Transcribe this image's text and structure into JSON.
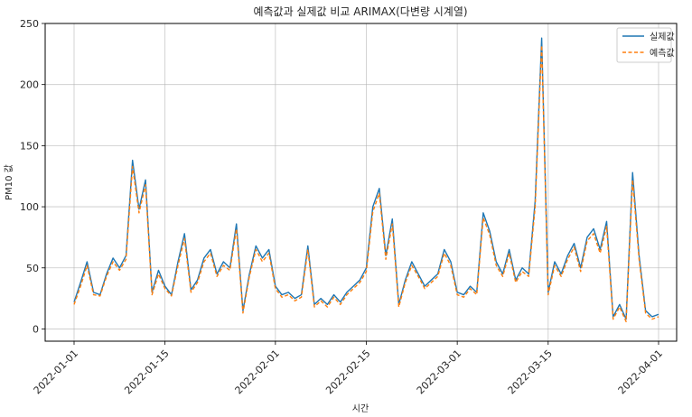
{
  "chart_data": {
    "type": "line",
    "title": "예측값과 실제값 비교 ARIMAX(다변량 시계열)",
    "xlabel": "시간",
    "ylabel": "PM10 값",
    "x_start": "2022-01-01",
    "x_end": "2022-04-01",
    "xlim": [
      "2022-01-01",
      "2022-04-01"
    ],
    "ylim": [
      -10,
      250
    ],
    "grid": true,
    "legend_position": "top-right",
    "x_ticks": [
      "2022-01-01",
      "2022-01-15",
      "2022-02-01",
      "2022-02-15",
      "2022-03-01",
      "2022-03-15",
      "2022-04-01"
    ],
    "y_ticks": [
      0,
      50,
      100,
      150,
      200,
      250
    ],
    "series": [
      {
        "name": "실제값",
        "color": "#1f77b4",
        "style": "solid",
        "values": [
          [
            "2022-01-01",
            22
          ],
          [
            "2022-01-02",
            38
          ],
          [
            "2022-01-03",
            55
          ],
          [
            "2022-01-04",
            30
          ],
          [
            "2022-01-05",
            28
          ],
          [
            "2022-01-06",
            45
          ],
          [
            "2022-01-07",
            58
          ],
          [
            "2022-01-08",
            50
          ],
          [
            "2022-01-09",
            60
          ],
          [
            "2022-01-10",
            138
          ],
          [
            "2022-01-11",
            98
          ],
          [
            "2022-01-12",
            122
          ],
          [
            "2022-01-13",
            30
          ],
          [
            "2022-01-14",
            48
          ],
          [
            "2022-01-15",
            35
          ],
          [
            "2022-01-16",
            28
          ],
          [
            "2022-01-17",
            55
          ],
          [
            "2022-01-18",
            78
          ],
          [
            "2022-01-19",
            32
          ],
          [
            "2022-01-20",
            40
          ],
          [
            "2022-01-21",
            58
          ],
          [
            "2022-01-22",
            65
          ],
          [
            "2022-01-23",
            45
          ],
          [
            "2022-01-24",
            55
          ],
          [
            "2022-01-25",
            50
          ],
          [
            "2022-01-26",
            86
          ],
          [
            "2022-01-27",
            15
          ],
          [
            "2022-01-28",
            45
          ],
          [
            "2022-01-29",
            68
          ],
          [
            "2022-01-30",
            58
          ],
          [
            "2022-01-31",
            65
          ],
          [
            "2022-02-01",
            35
          ],
          [
            "2022-02-02",
            28
          ],
          [
            "2022-02-03",
            30
          ],
          [
            "2022-02-04",
            25
          ],
          [
            "2022-02-05",
            28
          ],
          [
            "2022-02-06",
            68
          ],
          [
            "2022-02-07",
            20
          ],
          [
            "2022-02-08",
            25
          ],
          [
            "2022-02-09",
            20
          ],
          [
            "2022-02-10",
            28
          ],
          [
            "2022-02-11",
            22
          ],
          [
            "2022-02-12",
            30
          ],
          [
            "2022-02-13",
            35
          ],
          [
            "2022-02-14",
            40
          ],
          [
            "2022-02-15",
            50
          ],
          [
            "2022-02-16",
            100
          ],
          [
            "2022-02-17",
            115
          ],
          [
            "2022-02-18",
            60
          ],
          [
            "2022-02-19",
            90
          ],
          [
            "2022-02-20",
            20
          ],
          [
            "2022-02-21",
            40
          ],
          [
            "2022-02-22",
            55
          ],
          [
            "2022-02-23",
            45
          ],
          [
            "2022-02-24",
            35
          ],
          [
            "2022-02-25",
            40
          ],
          [
            "2022-02-26",
            45
          ],
          [
            "2022-02-27",
            65
          ],
          [
            "2022-02-28",
            55
          ],
          [
            "2022-03-01",
            30
          ],
          [
            "2022-03-02",
            28
          ],
          [
            "2022-03-03",
            35
          ],
          [
            "2022-03-04",
            30
          ],
          [
            "2022-03-05",
            95
          ],
          [
            "2022-03-06",
            80
          ],
          [
            "2022-03-07",
            55
          ],
          [
            "2022-03-08",
            45
          ],
          [
            "2022-03-09",
            65
          ],
          [
            "2022-03-10",
            40
          ],
          [
            "2022-03-11",
            50
          ],
          [
            "2022-03-12",
            45
          ],
          [
            "2022-03-13",
            105
          ],
          [
            "2022-03-14",
            238
          ],
          [
            "2022-03-15",
            30
          ],
          [
            "2022-03-16",
            55
          ],
          [
            "2022-03-17",
            45
          ],
          [
            "2022-03-18",
            60
          ],
          [
            "2022-03-19",
            70
          ],
          [
            "2022-03-20",
            50
          ],
          [
            "2022-03-21",
            75
          ],
          [
            "2022-03-22",
            82
          ],
          [
            "2022-03-23",
            65
          ],
          [
            "2022-03-24",
            88
          ],
          [
            "2022-03-25",
            10
          ],
          [
            "2022-03-26",
            20
          ],
          [
            "2022-03-27",
            8
          ],
          [
            "2022-03-28",
            128
          ],
          [
            "2022-03-29",
            60
          ],
          [
            "2022-03-30",
            15
          ],
          [
            "2022-03-31",
            10
          ],
          [
            "2022-04-01",
            12
          ]
        ]
      },
      {
        "name": "예측값",
        "color": "#ff7f0e",
        "style": "dashed",
        "values": [
          [
            "2022-01-01",
            20
          ],
          [
            "2022-01-02",
            35
          ],
          [
            "2022-01-03",
            52
          ],
          [
            "2022-01-04",
            28
          ],
          [
            "2022-01-05",
            27
          ],
          [
            "2022-01-06",
            43
          ],
          [
            "2022-01-07",
            55
          ],
          [
            "2022-01-08",
            48
          ],
          [
            "2022-01-09",
            57
          ],
          [
            "2022-01-10",
            133
          ],
          [
            "2022-01-11",
            95
          ],
          [
            "2022-01-12",
            118
          ],
          [
            "2022-01-13",
            28
          ],
          [
            "2022-01-14",
            45
          ],
          [
            "2022-01-15",
            33
          ],
          [
            "2022-01-16",
            27
          ],
          [
            "2022-01-17",
            52
          ],
          [
            "2022-01-18",
            74
          ],
          [
            "2022-01-19",
            30
          ],
          [
            "2022-01-20",
            38
          ],
          [
            "2022-01-21",
            55
          ],
          [
            "2022-01-22",
            62
          ],
          [
            "2022-01-23",
            43
          ],
          [
            "2022-01-24",
            52
          ],
          [
            "2022-01-25",
            48
          ],
          [
            "2022-01-26",
            82
          ],
          [
            "2022-01-27",
            13
          ],
          [
            "2022-01-28",
            43
          ],
          [
            "2022-01-29",
            65
          ],
          [
            "2022-01-30",
            55
          ],
          [
            "2022-01-31",
            62
          ],
          [
            "2022-02-01",
            33
          ],
          [
            "2022-02-02",
            26
          ],
          [
            "2022-02-03",
            28
          ],
          [
            "2022-02-04",
            23
          ],
          [
            "2022-02-05",
            26
          ],
          [
            "2022-02-06",
            65
          ],
          [
            "2022-02-07",
            18
          ],
          [
            "2022-02-08",
            23
          ],
          [
            "2022-02-09",
            18
          ],
          [
            "2022-02-10",
            26
          ],
          [
            "2022-02-11",
            20
          ],
          [
            "2022-02-12",
            28
          ],
          [
            "2022-02-13",
            33
          ],
          [
            "2022-02-14",
            38
          ],
          [
            "2022-02-15",
            47
          ],
          [
            "2022-02-16",
            96
          ],
          [
            "2022-02-17",
            111
          ],
          [
            "2022-02-18",
            57
          ],
          [
            "2022-02-19",
            86
          ],
          [
            "2022-02-20",
            18
          ],
          [
            "2022-02-21",
            38
          ],
          [
            "2022-02-22",
            52
          ],
          [
            "2022-02-23",
            43
          ],
          [
            "2022-02-24",
            33
          ],
          [
            "2022-02-25",
            38
          ],
          [
            "2022-02-26",
            43
          ],
          [
            "2022-02-27",
            62
          ],
          [
            "2022-02-28",
            52
          ],
          [
            "2022-03-01",
            28
          ],
          [
            "2022-03-02",
            26
          ],
          [
            "2022-03-03",
            33
          ],
          [
            "2022-03-04",
            28
          ],
          [
            "2022-03-05",
            91
          ],
          [
            "2022-03-06",
            77
          ],
          [
            "2022-03-07",
            52
          ],
          [
            "2022-03-08",
            43
          ],
          [
            "2022-03-09",
            62
          ],
          [
            "2022-03-10",
            38
          ],
          [
            "2022-03-11",
            47
          ],
          [
            "2022-03-12",
            43
          ],
          [
            "2022-03-13",
            100
          ],
          [
            "2022-03-14",
            232
          ],
          [
            "2022-03-15",
            28
          ],
          [
            "2022-03-16",
            52
          ],
          [
            "2022-03-17",
            43
          ],
          [
            "2022-03-18",
            57
          ],
          [
            "2022-03-19",
            67
          ],
          [
            "2022-03-20",
            47
          ],
          [
            "2022-03-21",
            72
          ],
          [
            "2022-03-22",
            78
          ],
          [
            "2022-03-23",
            62
          ],
          [
            "2022-03-24",
            84
          ],
          [
            "2022-03-25",
            8
          ],
          [
            "2022-03-26",
            18
          ],
          [
            "2022-03-27",
            6
          ],
          [
            "2022-03-28",
            122
          ],
          [
            "2022-03-29",
            57
          ],
          [
            "2022-03-30",
            13
          ],
          [
            "2022-03-31",
            8
          ],
          [
            "2022-04-01",
            10
          ]
        ]
      }
    ]
  }
}
